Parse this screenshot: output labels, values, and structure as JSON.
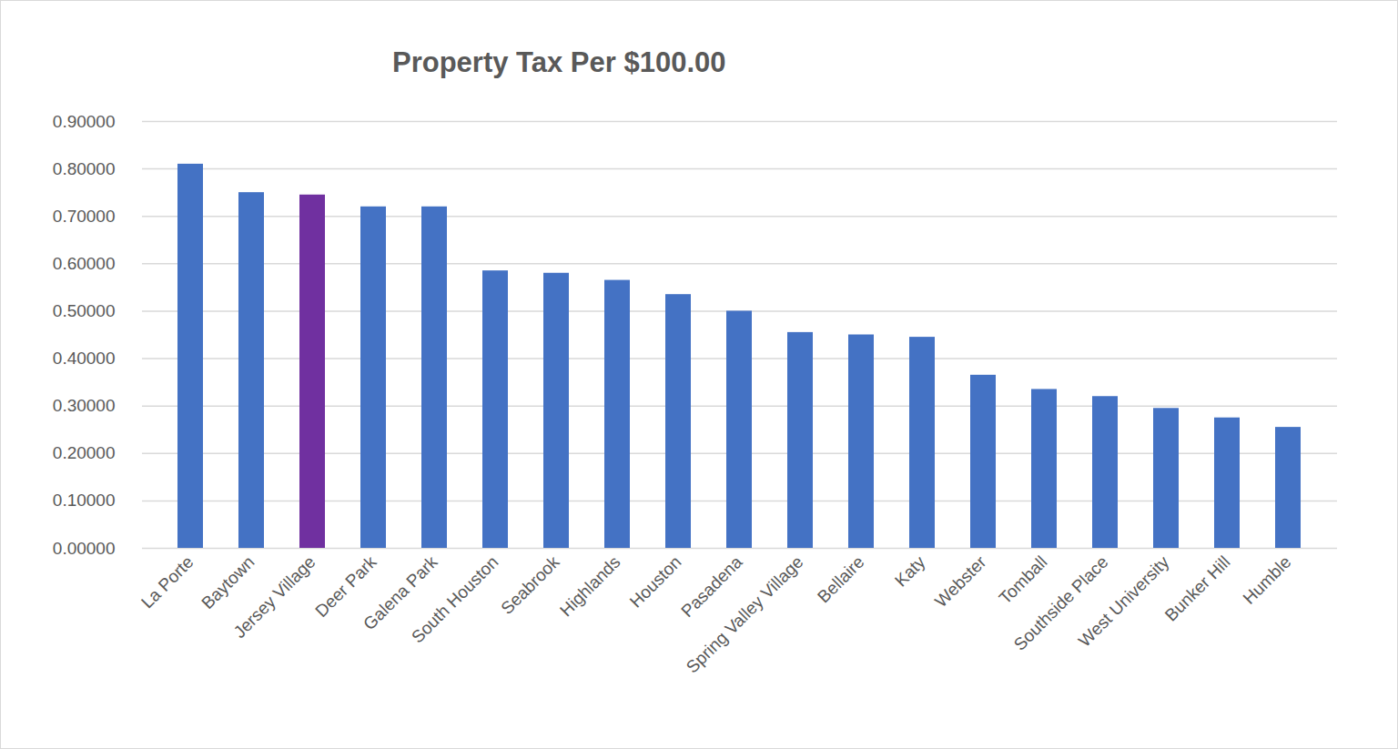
{
  "chart_data": {
    "type": "bar",
    "title": "Property Tax Per $100.00",
    "categories": [
      "La Porte",
      "Baytown",
      "Jersey Village",
      "Deer Park",
      "Galena Park",
      "South Houston",
      "Seabrook",
      "Highlands",
      "Houston",
      "Pasadena",
      "Spring Valley Village",
      "Bellaire",
      "Katy",
      "Webster",
      "Tomball",
      "Southside Place",
      "West University",
      "Bunker Hill",
      "Humble"
    ],
    "values": [
      0.81,
      0.75,
      0.745,
      0.72,
      0.72,
      0.585,
      0.58,
      0.565,
      0.535,
      0.5,
      0.455,
      0.45,
      0.445,
      0.365,
      0.335,
      0.32,
      0.295,
      0.275,
      0.255
    ],
    "colors": [
      "#4472c4",
      "#4472c4",
      "#7030a0",
      "#4472c4",
      "#4472c4",
      "#4472c4",
      "#4472c4",
      "#4472c4",
      "#4472c4",
      "#4472c4",
      "#4472c4",
      "#4472c4",
      "#4472c4",
      "#4472c4",
      "#4472c4",
      "#4472c4",
      "#4472c4",
      "#4472c4",
      "#4472c4"
    ],
    "ylim": [
      0,
      0.9
    ],
    "yticks": [
      {
        "value": 0,
        "label": "0.00000"
      },
      {
        "value": 0.1,
        "label": "0.10000"
      },
      {
        "value": 0.2,
        "label": "0.20000"
      },
      {
        "value": 0.3,
        "label": "0.30000"
      },
      {
        "value": 0.4,
        "label": "0.40000"
      },
      {
        "value": 0.5,
        "label": "0.50000"
      },
      {
        "value": 0.6,
        "label": "0.60000"
      },
      {
        "value": 0.7,
        "label": "0.70000"
      },
      {
        "value": 0.8,
        "label": "0.80000"
      },
      {
        "value": 0.9,
        "label": "0.90000"
      }
    ],
    "grid": true
  }
}
